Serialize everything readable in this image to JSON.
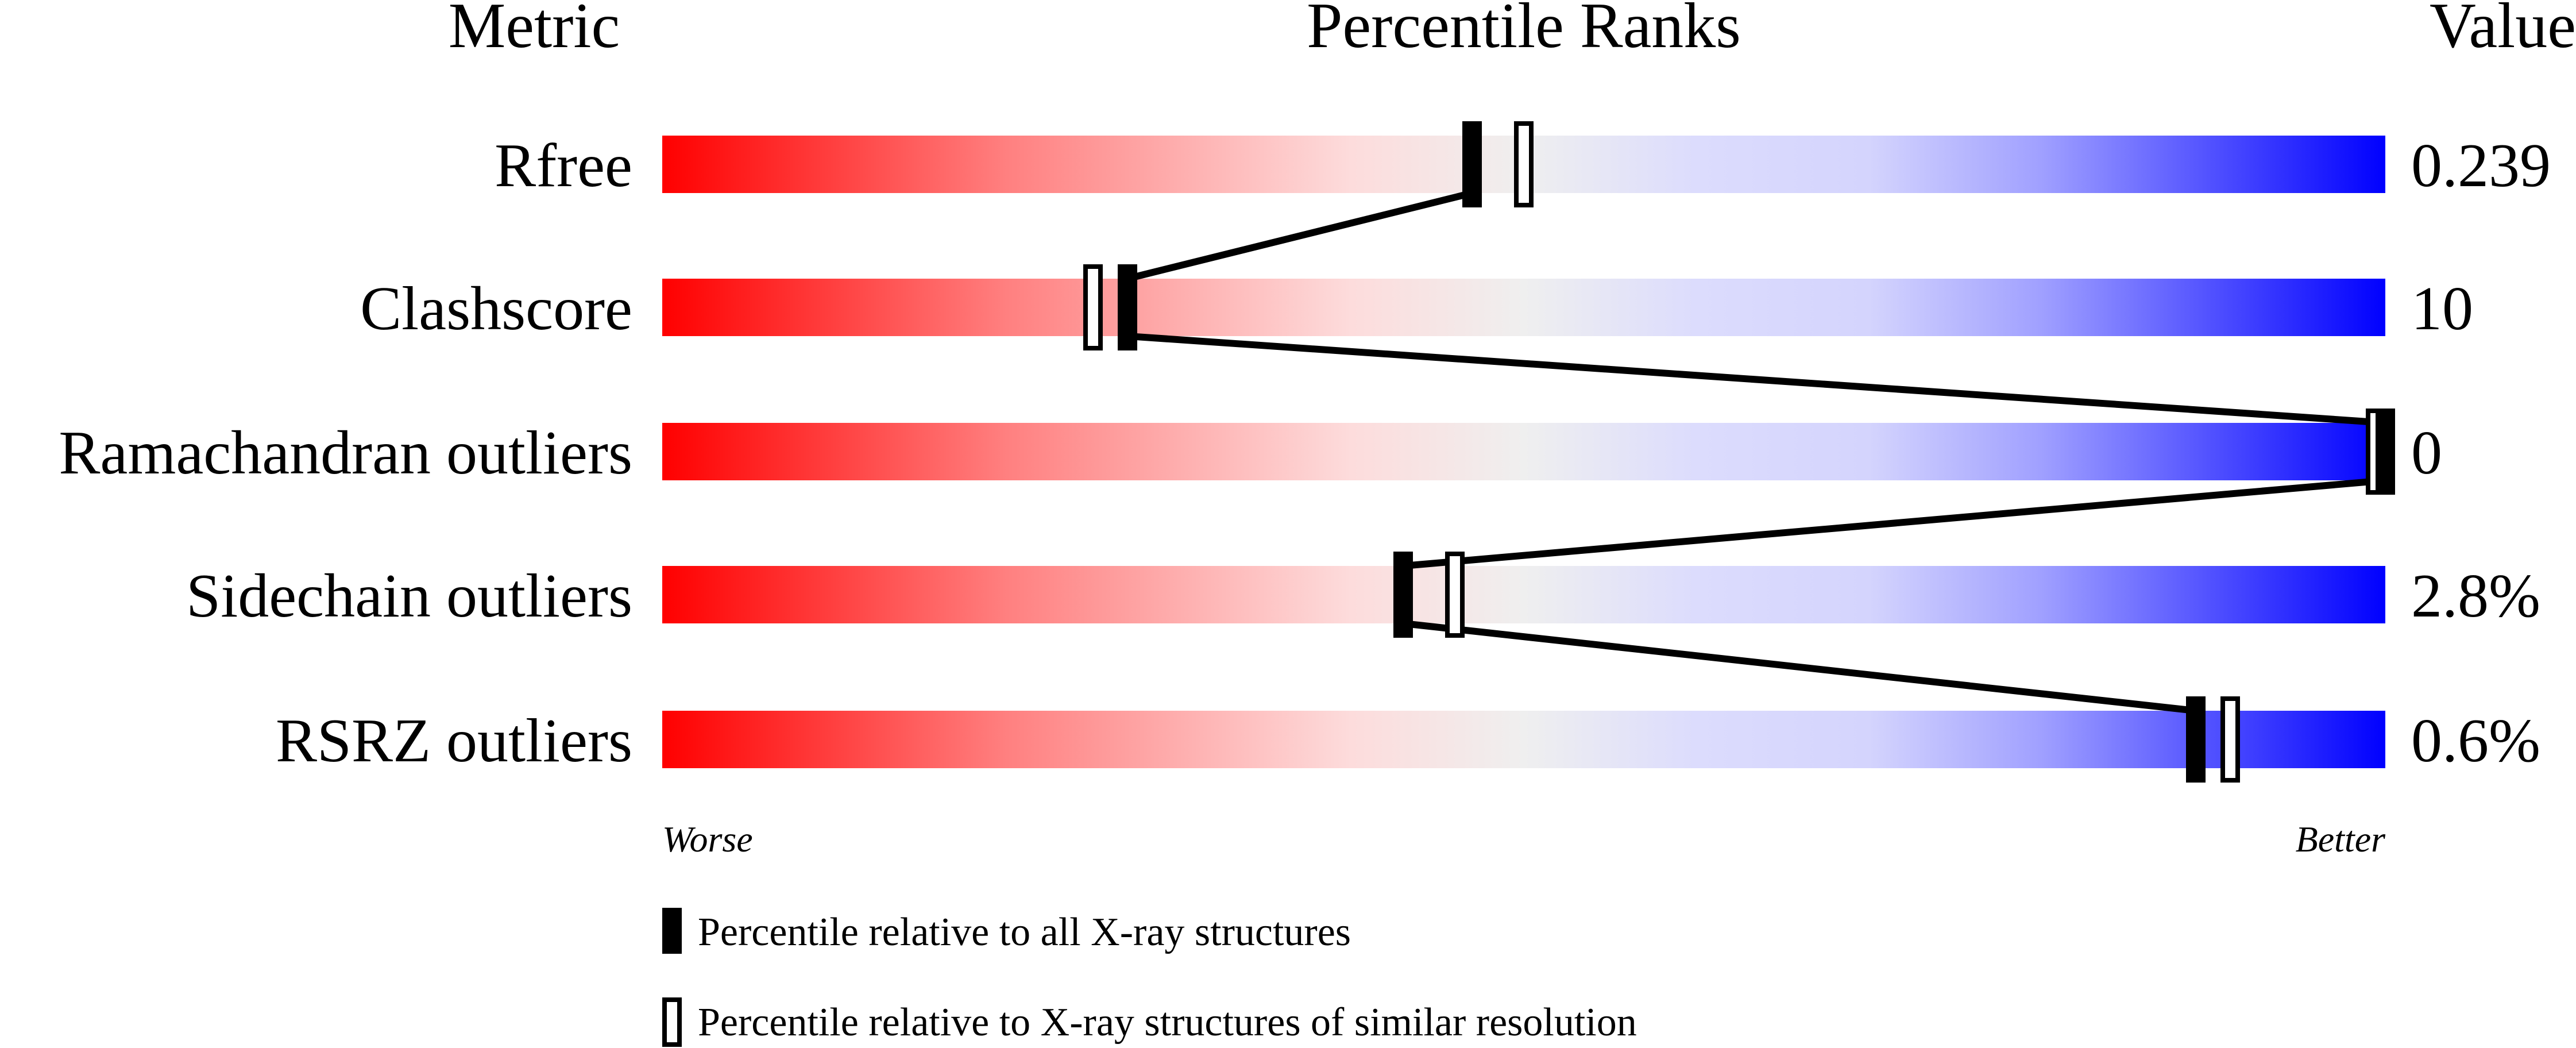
{
  "chart_data": {
    "type": "percentile-slider",
    "headers": {
      "metric": "Metric",
      "ranks": "Percentile Ranks",
      "value": "Value"
    },
    "xlim": [
      0,
      100
    ],
    "axis_labels": {
      "left": "Worse",
      "right": "Better"
    },
    "rows": [
      {
        "metric": "Rfree",
        "value": "0.239",
        "percentile_all": 47,
        "percentile_similar": 50
      },
      {
        "metric": "Clashscore",
        "value": "10",
        "percentile_all": 27,
        "percentile_similar": 25
      },
      {
        "metric": "Ramachandran outliers",
        "value": "0",
        "percentile_all": 100,
        "percentile_similar": 100
      },
      {
        "metric": "Sidechain outliers",
        "value": "2.8%",
        "percentile_all": 43,
        "percentile_similar": 46
      },
      {
        "metric": "RSRZ outliers",
        "value": "0.6%",
        "percentile_all": 89,
        "percentile_similar": 91
      }
    ],
    "legend": [
      {
        "marker": "filled",
        "label": "Percentile relative to all X-ray structures"
      },
      {
        "marker": "open",
        "label": "Percentile relative to X-ray structures of similar resolution"
      }
    ],
    "colors": {
      "worse": "#ff0000",
      "middle": "#eeeeee",
      "better": "#0000ff",
      "marker": "#000000"
    }
  }
}
